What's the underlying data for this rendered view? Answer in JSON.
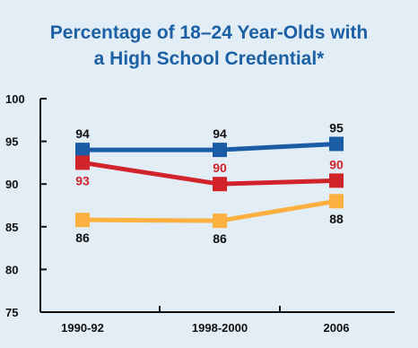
{
  "chart_data": {
    "type": "line",
    "title_lines": [
      "Percentage of 18–24 Year-Olds with",
      "a High School Credential*"
    ],
    "categories": [
      "1990-92",
      "1998-2000",
      "2006"
    ],
    "ylim": [
      75,
      100
    ],
    "yticks": [
      75,
      80,
      85,
      90,
      95,
      100
    ],
    "grid": false,
    "legend": "none",
    "series": [
      {
        "values": [
          94,
          94,
          94.7
        ],
        "labels": [
          "94",
          "94",
          "95"
        ],
        "label_position": "above",
        "color": "#1a5ca6",
        "label_color": "#111111"
      },
      {
        "values": [
          92.5,
          90,
          90.4
        ],
        "labels": [
          "93",
          "90",
          "90"
        ],
        "label_position": [
          "below",
          "above",
          "above"
        ],
        "color": "#d1232a",
        "label_color": "#d1232a"
      },
      {
        "values": [
          85.8,
          85.7,
          88
        ],
        "labels": [
          "86",
          "86",
          "88"
        ],
        "label_position": "below",
        "color": "#fbb040",
        "label_color": "#111111"
      }
    ]
  }
}
